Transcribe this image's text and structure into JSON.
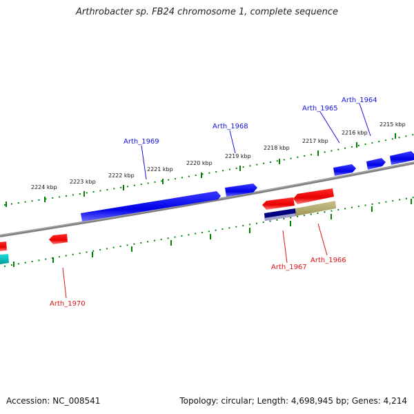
{
  "title": "Arthrobacter sp. FB24 chromosome 1, complete sequence",
  "footer": {
    "accession": "Accession: NC_008541",
    "topology": "Topology: circular; Length: 4,698,945 bp; Genes: 4,214"
  },
  "ticks": [
    "2215 kbp",
    "2216 kbp",
    "2217 kbp",
    "2218 kbp",
    "2219 kbp",
    "2220 kbp",
    "2221 kbp",
    "2222 kbp",
    "2223 kbp",
    "2224 kbp"
  ],
  "genes_forward": [
    {
      "name": "Arth_1964",
      "color": "#1010e0"
    },
    {
      "name": "Arth_1965",
      "color": "#1010e0"
    },
    {
      "name": "Arth_1968",
      "color": "#1010e0"
    },
    {
      "name": "Arth_1969",
      "color": "#1010e0"
    }
  ],
  "genes_reverse": [
    {
      "name": "Arth_1966",
      "color": "#e01010"
    },
    {
      "name": "Arth_1967",
      "color": "#e01010"
    },
    {
      "name": "Arth_1970",
      "color": "#e01010"
    }
  ],
  "colors": {
    "backbone": "#808080",
    "ticks": "#008000",
    "forward_gene": "#0000ff",
    "reverse_gene": "#ff0000",
    "olive_feature": "#b5ac6a",
    "navy_feature": "#000080",
    "cyan_feature": "#00c0c0"
  }
}
